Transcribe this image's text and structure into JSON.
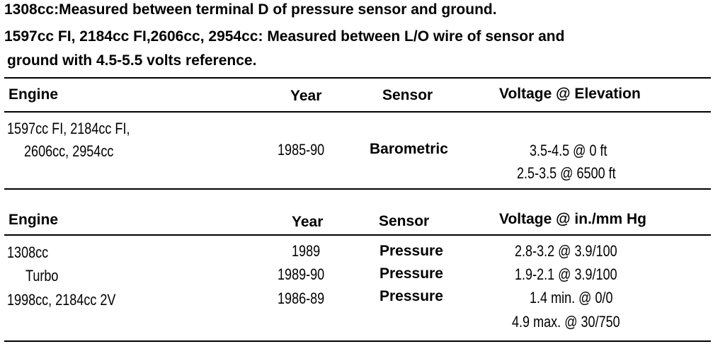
{
  "notes": [
    {
      "label": "1308cc:",
      "text": "Measured between terminal D of pressure sensor and ground."
    },
    {
      "label": "1597cc FI, 2184cc FI,2606cc, 2954cc:",
      "text": "Measured between L/O wire of sensor and",
      "text2": "ground with 4.5-5.5 volts reference."
    }
  ],
  "tables": [
    {
      "header": [
        "Engine",
        "Year",
        "Sensor",
        "Voltage @ Elevation"
      ],
      "rows": [
        {
          "engine": [
            "1597cc FI, 2184cc FI,",
            "2606cc, 2954cc"
          ],
          "year": "1985-90",
          "sensor": "Barometric",
          "voltage": [
            "3.5-4.5 @ 0 ft",
            "2.5-3.5 @ 6500 ft"
          ]
        }
      ]
    },
    {
      "header": [
        "Engine",
        "Year",
        "Sensor",
        "Voltage @ in./mm Hg"
      ],
      "rows": [
        {
          "engine": [
            "1308cc"
          ],
          "year": "1989",
          "sensor": "Pressure",
          "voltage": [
            "2.8-3.2 @ 3.9/100"
          ]
        },
        {
          "engine": [
            "Turbo"
          ],
          "year": "1989-90",
          "sensor": "Pressure",
          "voltage": [
            "1.9-2.1 @ 3.9/100"
          ]
        },
        {
          "engine": [
            "1998cc, 2184cc 2V"
          ],
          "year": "1986-89",
          "sensor": "Pressure",
          "voltage": [
            "1.4 min. @ 0/0",
            "4.9 max. @ 30/750"
          ]
        }
      ]
    }
  ]
}
